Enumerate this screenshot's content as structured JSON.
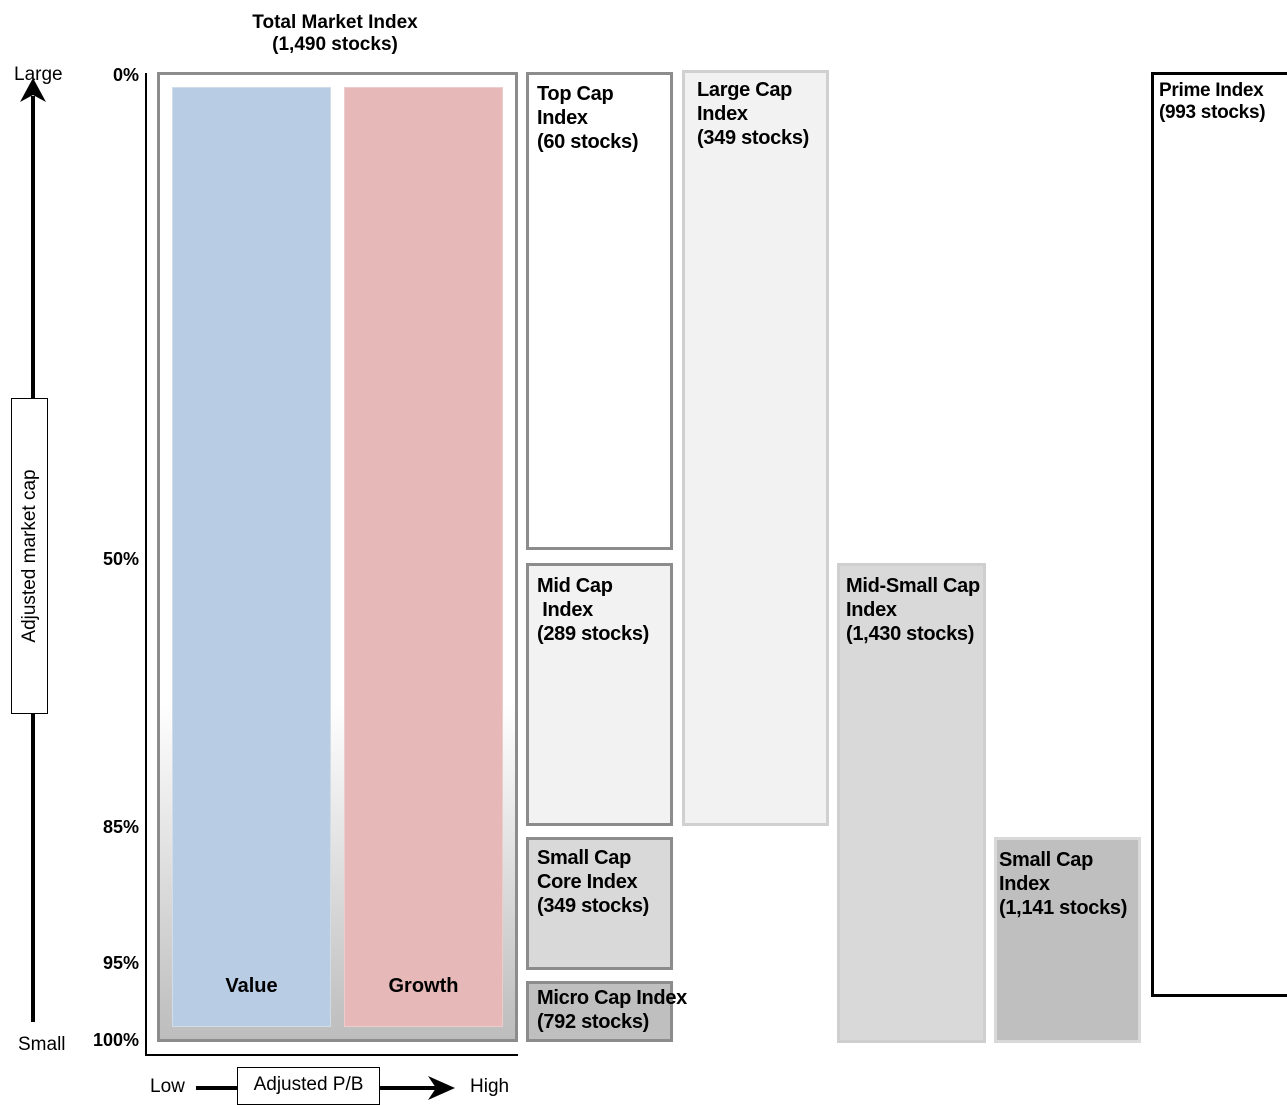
{
  "title": {
    "line1": "Total Market Index",
    "line2": "(1,490 stocks)"
  },
  "size_axis": {
    "label": "Adjusted market cap",
    "top_label": "Large",
    "bottom_label": "Small",
    "ticks": [
      "0%",
      "50%",
      "85%",
      "95%",
      "100%"
    ]
  },
  "style_axis": {
    "label": "Adjusted P/B",
    "left_label": "Low",
    "right_label": "High"
  },
  "style_columns": {
    "value": "Value",
    "growth": "Growth"
  },
  "indices": {
    "top_cap": "Top Cap\nIndex\n(60 stocks)",
    "mid_cap": "Mid Cap\n Index\n(289 stocks)",
    "small_cap_core": "Small Cap\nCore Index\n(349 stocks)",
    "micro_cap": "Micro Cap Index\n(792 stocks)",
    "large_cap": "Large Cap\nIndex\n(349 stocks)",
    "mid_small_cap": "Mid-Small Cap\nIndex\n(1,430 stocks)",
    "small_cap": "Small Cap\nIndex\n(1,141 stocks)",
    "prime": "Prime Index\n(993 stocks)"
  },
  "colors": {
    "value_fill": "#b8cce4",
    "growth_fill": "#e6b8b7",
    "frame_gray": "#8c8c8c",
    "light_fill": "#f2f2f2",
    "mid_fill": "#d9d9d9",
    "dark_fill": "#bfbfbf"
  }
}
